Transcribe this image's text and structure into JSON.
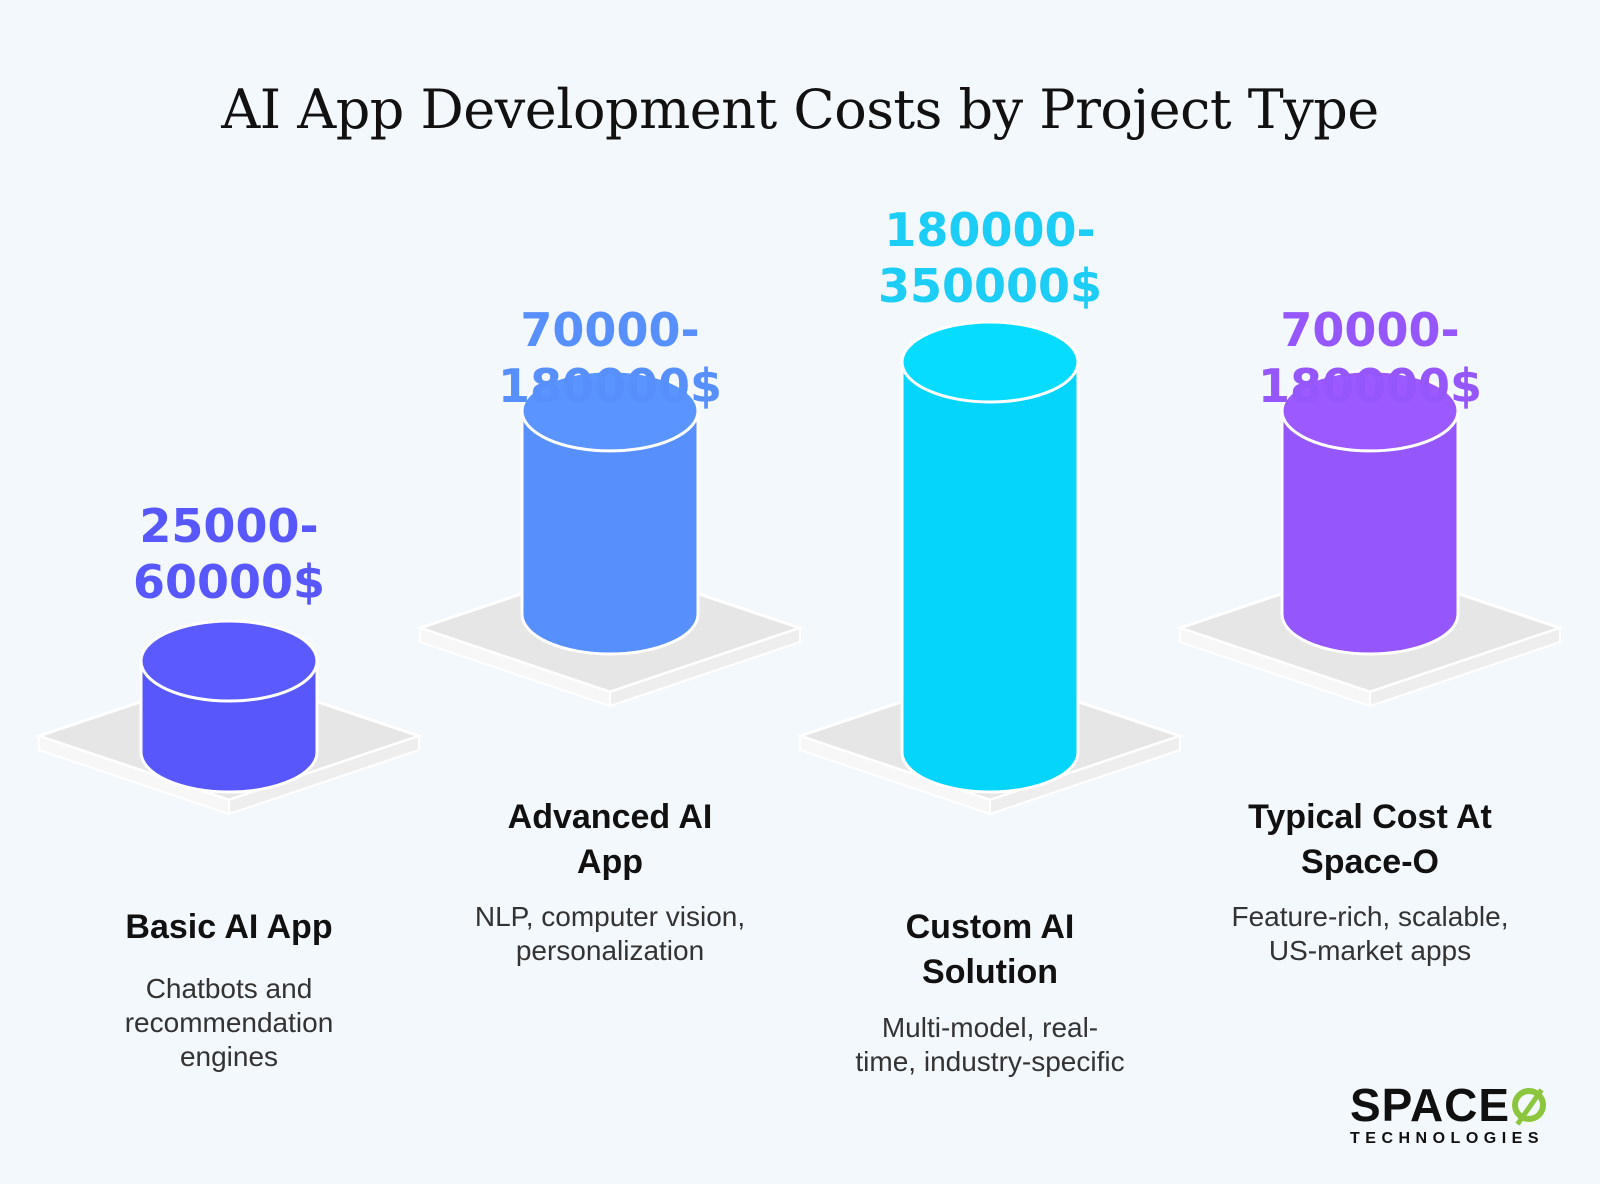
{
  "title": "AI App Development Costs by Project Type",
  "chart_data": {
    "type": "bar",
    "title": "AI App Development Costs by Project Type",
    "categories": [
      "Basic AI App",
      "Advanced AI App",
      "Custom AI Solution",
      "Typical Cost At Space-O"
    ],
    "values_text": [
      [
        "25000-",
        "60000$"
      ],
      [
        "70000-",
        "180000$"
      ],
      [
        "180000-",
        "350000$"
      ],
      [
        "70000-",
        "180000$"
      ]
    ],
    "ranges": [
      [
        25000,
        60000
      ],
      [
        70000,
        180000
      ],
      [
        180000,
        350000
      ],
      [
        70000,
        180000
      ]
    ],
    "descriptions": [
      [
        "Chatbots and",
        "recommendation",
        "engines"
      ],
      [
        "NLP, computer vision,",
        "personalization"
      ],
      [
        "Multi-model, real-",
        "time, industry-specific"
      ],
      [
        "Feature-rich, scalable,",
        "US-market apps"
      ]
    ],
    "label_lines": [
      [
        "Basic AI App"
      ],
      [
        "Advanced AI",
        "App"
      ],
      [
        "Custom AI",
        "Solution"
      ],
      [
        "Typical Cost At",
        "Space-O"
      ]
    ],
    "colors": [
      "#5757fb",
      "#578ffc",
      "#05d4fb",
      "#9556fc"
    ],
    "value_colors": [
      "#5757fb",
      "#578ffc",
      "#1ccdf5",
      "#9556fc"
    ]
  },
  "logo": {
    "main": "SPACE",
    "sub": "TECHNOLOGIES"
  }
}
